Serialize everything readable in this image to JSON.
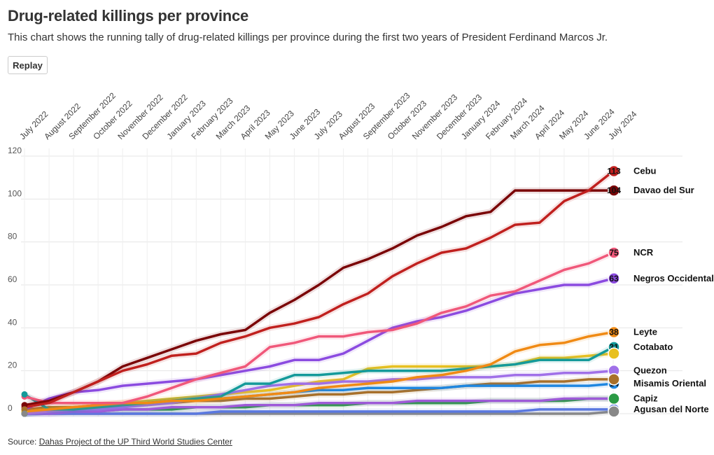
{
  "header": {
    "title": "Drug-related killings per province",
    "subtitle": "This chart shows the running tally of drug-related killings per province during the first two years of President Ferdinand Marcos Jr."
  },
  "controls": {
    "replay_label": "Replay"
  },
  "footer": {
    "source_prefix": "Source: ",
    "source_link": "Dahas Project of the UP Third World Studies Center"
  },
  "chart_data": {
    "type": "line",
    "title": "Drug-related killings per province",
    "ylim": [
      0,
      120
    ],
    "y_ticks": [
      0,
      20,
      40,
      60,
      80,
      100,
      120
    ],
    "grid": true,
    "x": [
      "July 2022",
      "August 2022",
      "September 2022",
      "October 2022",
      "November 2022",
      "December 2022",
      "January 2023",
      "February 2023",
      "March 2023",
      "April 2023",
      "May 2023",
      "June 2023",
      "July 2023",
      "August 2023",
      "September 2023",
      "October 2023",
      "November 2023",
      "December 2023",
      "January 2024",
      "February 2024",
      "March 2024",
      "April 2024",
      "May 2024",
      "June 2024",
      "July 2024"
    ],
    "series": [
      {
        "name": "Cebu",
        "color": "#c0201e",
        "end_label": "113",
        "values": [
          3,
          5,
          10,
          15,
          20,
          23,
          27,
          28,
          33,
          36,
          40,
          42,
          45,
          51,
          56,
          64,
          70,
          75,
          77,
          82,
          88,
          89,
          99,
          104,
          113
        ]
      },
      {
        "name": "Davao del Sur",
        "color": "#7a0406",
        "end_label": "104",
        "values": [
          4,
          6,
          10,
          15,
          22,
          26,
          30,
          34,
          37,
          39,
          47,
          53,
          60,
          68,
          72,
          77,
          83,
          87,
          92,
          94,
          104,
          104,
          104,
          104,
          104
        ]
      },
      {
        "name": "NCR",
        "color": "#f0587a",
        "end_label": "75",
        "values": [
          8,
          5,
          5,
          5,
          5,
          8,
          12,
          16,
          19,
          22,
          31,
          33,
          36,
          36,
          38,
          39,
          42,
          47,
          50,
          55,
          57,
          62,
          67,
          70,
          75
        ]
      },
      {
        "name": "Negros Occidental",
        "color": "#8b4be0",
        "end_label": "63",
        "values": [
          2,
          7,
          10,
          11,
          13,
          14,
          15,
          16,
          18,
          20,
          22,
          25,
          25,
          28,
          34,
          40,
          43,
          45,
          48,
          52,
          56,
          58,
          60,
          60,
          63
        ]
      },
      {
        "name": "Leyte",
        "color": "#f08a14",
        "end_label": "38",
        "values": [
          1,
          2,
          3,
          4,
          5,
          5,
          6,
          6,
          7,
          8,
          9,
          10,
          12,
          13,
          14,
          15,
          17,
          18,
          20,
          23,
          29,
          32,
          33,
          36,
          38
        ]
      },
      {
        "name": "Cotabato",
        "color": "#149a9a",
        "end_label": "31",
        "values": [
          9,
          2,
          2,
          3,
          4,
          5,
          6,
          7,
          8,
          14,
          14,
          18,
          18,
          19,
          20,
          20,
          20,
          20,
          21,
          22,
          23,
          25,
          25,
          25,
          31
        ]
      },
      {
        "name": "Quezon",
        "color": "#a070e8",
        "end_label": "",
        "values": [
          0,
          1,
          2,
          2,
          3,
          4,
          5,
          7,
          9,
          11,
          13,
          14,
          14,
          15,
          15,
          16,
          16,
          17,
          17,
          17,
          18,
          18,
          19,
          19,
          20
        ]
      },
      {
        "name": "Misamis Oriental",
        "color": "#1f87e0",
        "end_label": "14",
        "values": [
          0,
          1,
          2,
          3,
          4,
          5,
          6,
          7,
          7,
          8,
          9,
          10,
          11,
          11,
          12,
          12,
          12,
          12,
          13,
          13,
          13,
          13,
          13,
          13,
          14
        ]
      },
      {
        "name": "Capiz",
        "color": "#9e5ad8",
        "end_label": "7",
        "values": [
          0,
          0,
          1,
          1,
          2,
          2,
          3,
          3,
          3,
          4,
          4,
          4,
          5,
          5,
          5,
          5,
          6,
          6,
          6,
          6,
          6,
          6,
          7,
          7,
          7
        ]
      },
      {
        "name": "Agusan del Norte",
        "color": "#5a78e0",
        "end_label": "2",
        "values": [
          0,
          0,
          0,
          0,
          0,
          0,
          0,
          0,
          1,
          1,
          1,
          1,
          1,
          1,
          1,
          1,
          1,
          1,
          1,
          1,
          1,
          2,
          2,
          2,
          2
        ]
      },
      {
        "name": "",
        "color": "#e8c020",
        "end_label": "",
        "values": [
          1,
          2,
          3,
          4,
          5,
          6,
          7,
          8,
          9,
          10,
          11,
          13,
          15,
          16,
          21,
          22,
          22,
          22,
          22,
          22,
          23,
          26,
          26,
          27,
          28
        ]
      },
      {
        "name": "",
        "color": "#a8702a",
        "end_label": "",
        "values": [
          2,
          3,
          3,
          4,
          4,
          5,
          5,
          6,
          6,
          7,
          7,
          8,
          9,
          9,
          10,
          10,
          11,
          12,
          13,
          14,
          14,
          15,
          15,
          16,
          16
        ]
      },
      {
        "name": "",
        "color": "#2a9a44",
        "end_label": "",
        "values": [
          0,
          1,
          1,
          1,
          2,
          2,
          2,
          3,
          3,
          3,
          4,
          4,
          4,
          4,
          5,
          5,
          5,
          5,
          5,
          6,
          6,
          6,
          6,
          7,
          7
        ]
      },
      {
        "name": "",
        "color": "#888888",
        "end_label": "",
        "values": [
          0,
          0,
          0,
          0,
          0,
          0,
          0,
          0,
          0,
          0,
          0,
          0,
          0,
          0,
          0,
          0,
          0,
          0,
          0,
          0,
          0,
          0,
          0,
          0,
          1
        ]
      }
    ]
  }
}
